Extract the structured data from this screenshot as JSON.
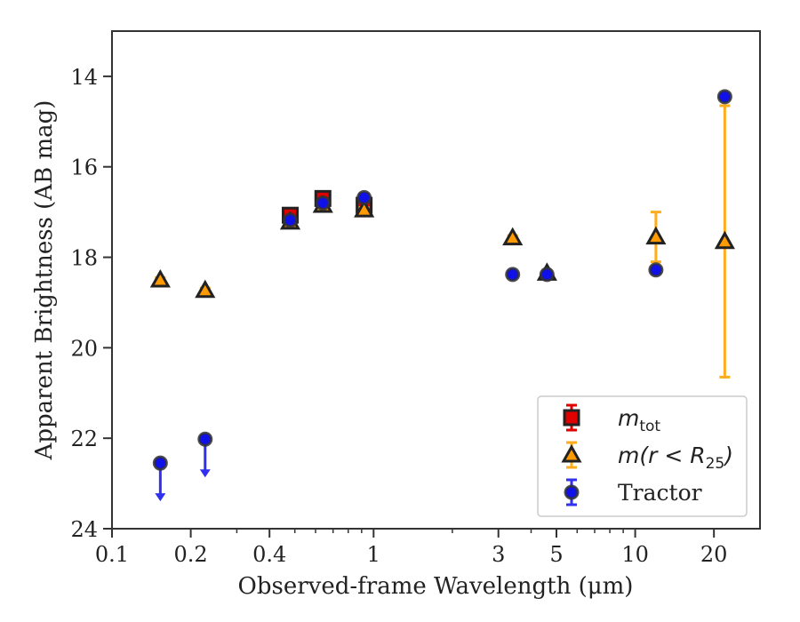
{
  "chart_data": {
    "type": "scatter",
    "xlabel": "Observed-frame Wavelength (μm)",
    "ylabel": "Apparent Brightness (AB mag)",
    "x_scale": "log",
    "xlim": [
      0.1,
      30
    ],
    "ylim": [
      24,
      13
    ],
    "y_inverted": true,
    "x_ticks": [
      0.1,
      0.2,
      0.4,
      1,
      3,
      5,
      10,
      20
    ],
    "x_tick_labels": [
      "0.1",
      "0.2",
      "0.4",
      "1",
      "3",
      "5",
      "10",
      "20"
    ],
    "y_ticks": [
      14,
      16,
      18,
      20,
      22,
      24
    ],
    "y_tick_labels": [
      "14",
      "16",
      "18",
      "20",
      "22",
      "24"
    ],
    "grid": false,
    "legend_position": "lower-right",
    "series": [
      {
        "name": "m_tot",
        "marker": "square",
        "color": "#e00000",
        "errbar_color": "#e00000",
        "points": [
          {
            "x": 0.48,
            "y": 17.07,
            "yerr": 0.12
          },
          {
            "x": 0.64,
            "y": 16.7,
            "yerr": 0.12
          },
          {
            "x": 0.92,
            "y": 16.85,
            "yerr": 0.12
          }
        ]
      },
      {
        "name": "m(r<R25)",
        "marker": "triangle",
        "color": "#ff9a00",
        "errbar_color": "#ffad1f",
        "points": [
          {
            "x": 0.153,
            "y": 18.5,
            "yerr": 0.05
          },
          {
            "x": 0.227,
            "y": 18.73,
            "yerr": 0.05
          },
          {
            "x": 0.48,
            "y": 17.22,
            "yerr": 0.05
          },
          {
            "x": 0.64,
            "y": 16.85,
            "yerr": 0.05
          },
          {
            "x": 0.92,
            "y": 16.95,
            "yerr": 0.05
          },
          {
            "x": 3.4,
            "y": 17.57,
            "yerr": 0.05
          },
          {
            "x": 4.6,
            "y": 18.35,
            "yerr": 0.05
          },
          {
            "x": 12.0,
            "y": 17.55,
            "yerr_low": 0.55,
            "yerr_high": 0.55
          },
          {
            "x": 22.0,
            "y": 17.65,
            "yerr_low": 3.0,
            "yerr_high": 3.0
          }
        ]
      },
      {
        "name": "Tractor",
        "marker": "circle",
        "color": "#1010e8",
        "errbar_color": "#3030ee",
        "points": [
          {
            "x": 0.153,
            "y": 22.55,
            "upper_limit": true
          },
          {
            "x": 0.227,
            "y": 22.02,
            "upper_limit": true
          },
          {
            "x": 0.48,
            "y": 17.18,
            "yerr": 0.08
          },
          {
            "x": 0.64,
            "y": 16.8,
            "yerr": 0.08
          },
          {
            "x": 0.92,
            "y": 16.68,
            "yerr": 0.08
          },
          {
            "x": 3.4,
            "y": 18.38,
            "yerr": 0.06
          },
          {
            "x": 4.6,
            "y": 18.38,
            "yerr": 0.06
          },
          {
            "x": 12.0,
            "y": 18.28,
            "yerr": 0.06
          },
          {
            "x": 22.0,
            "y": 14.45,
            "yerr": 0.06
          }
        ]
      }
    ],
    "legend": [
      {
        "series": 0,
        "label": "m",
        "sub": "tot",
        "italic": true
      },
      {
        "series": 1,
        "label": "m(r < R",
        "sub": "25",
        "tail": ")",
        "italic": true
      },
      {
        "series": 2,
        "label": "Tractor",
        "italic": false
      }
    ]
  }
}
